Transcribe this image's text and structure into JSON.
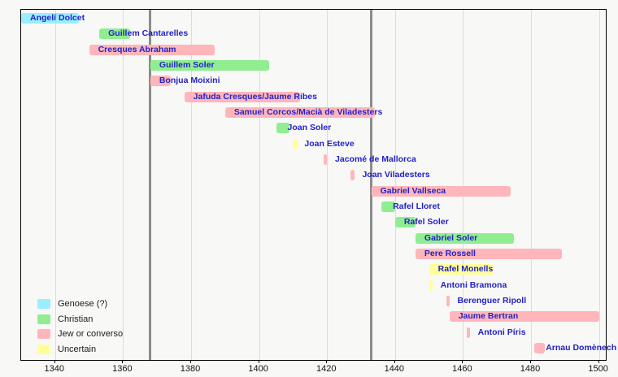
{
  "chart_data": {
    "type": "timeline-bar",
    "title": "",
    "x_min": 1330,
    "x_max": 1502,
    "x_ticks": [
      "1340",
      "1360",
      "1380",
      "1400",
      "1420",
      "1440",
      "1460",
      "1480",
      "1500"
    ],
    "epoch_lines": [
      1368,
      1433
    ],
    "grid": true,
    "label_color": "#2222c8",
    "categories": {
      "genoese": {
        "label": "Genoese (?)",
        "color": "#99eeff"
      },
      "christian": {
        "label": "Christian",
        "color": "#90ee90"
      },
      "jew_or_converso": {
        "label": "Jew or converso",
        "color": "#ffb6ba"
      },
      "uncertain": {
        "label": "Uncertain",
        "color": "#ffff99"
      }
    },
    "legend_order": [
      "genoese",
      "christian",
      "jew_or_converso",
      "uncertain"
    ],
    "people": [
      {
        "name": "Angelí Dolcet",
        "start": 1330,
        "end": 1347,
        "category": "genoese"
      },
      {
        "name": "Guillem Cantarelles",
        "start": 1353,
        "end": 1362,
        "category": "christian"
      },
      {
        "name": "Cresques Abraham",
        "start": 1350,
        "end": 1387,
        "category": "jew_or_converso"
      },
      {
        "name": "Guillem Soler",
        "start": 1368,
        "end": 1403,
        "category": "christian"
      },
      {
        "name": "Bonjua Moixini",
        "start": 1368,
        "end": 1374,
        "category": "jew_or_converso"
      },
      {
        "name": "Jafuda Cresques/Jaume Ribes",
        "start": 1378,
        "end": 1412,
        "category": "jew_or_converso"
      },
      {
        "name": "Samuel Corcos/Macià de Viladesters",
        "start": 1390,
        "end": 1434,
        "category": "jew_or_converso"
      },
      {
        "name": "Joan Soler",
        "start": 1405,
        "end": 1409,
        "category": "christian"
      },
      {
        "name": "Joan Esteve",
        "start": 1410,
        "end": 1411,
        "category": "uncertain"
      },
      {
        "name": "Jacomé de Mallorca",
        "start": 1419,
        "end": 1420,
        "category": "jew_or_converso"
      },
      {
        "name": "Joan Viladesters",
        "start": 1427,
        "end": 1428,
        "category": "jew_or_converso"
      },
      {
        "name": "Gabriel Vallseca",
        "start": 1433,
        "end": 1474,
        "category": "jew_or_converso"
      },
      {
        "name": "Rafel Lloret",
        "start": 1436,
        "end": 1440,
        "category": "christian"
      },
      {
        "name": "Rafel Soler",
        "start": 1440,
        "end": 1446,
        "category": "christian"
      },
      {
        "name": "Gabriel Soler",
        "start": 1446,
        "end": 1475,
        "category": "christian"
      },
      {
        "name": "Pere Rossell",
        "start": 1446,
        "end": 1489,
        "category": "jew_or_converso"
      },
      {
        "name": "Rafel Monells",
        "start": 1450,
        "end": 1469,
        "category": "uncertain"
      },
      {
        "name": "Antoni Bramona",
        "start": 1450,
        "end": 1451,
        "category": "uncertain"
      },
      {
        "name": "Berenguer Ripoll",
        "start": 1455,
        "end": 1456,
        "category": "jew_or_converso"
      },
      {
        "name": "Jaume Bertran",
        "start": 1456,
        "end": 1500,
        "category": "jew_or_converso"
      },
      {
        "name": "Antoni Píris",
        "start": 1461,
        "end": 1462,
        "category": "jew_or_converso"
      },
      {
        "name": "Arnau Domènech",
        "start": 1481,
        "end": 1484,
        "category": "jew_or_converso"
      }
    ]
  }
}
